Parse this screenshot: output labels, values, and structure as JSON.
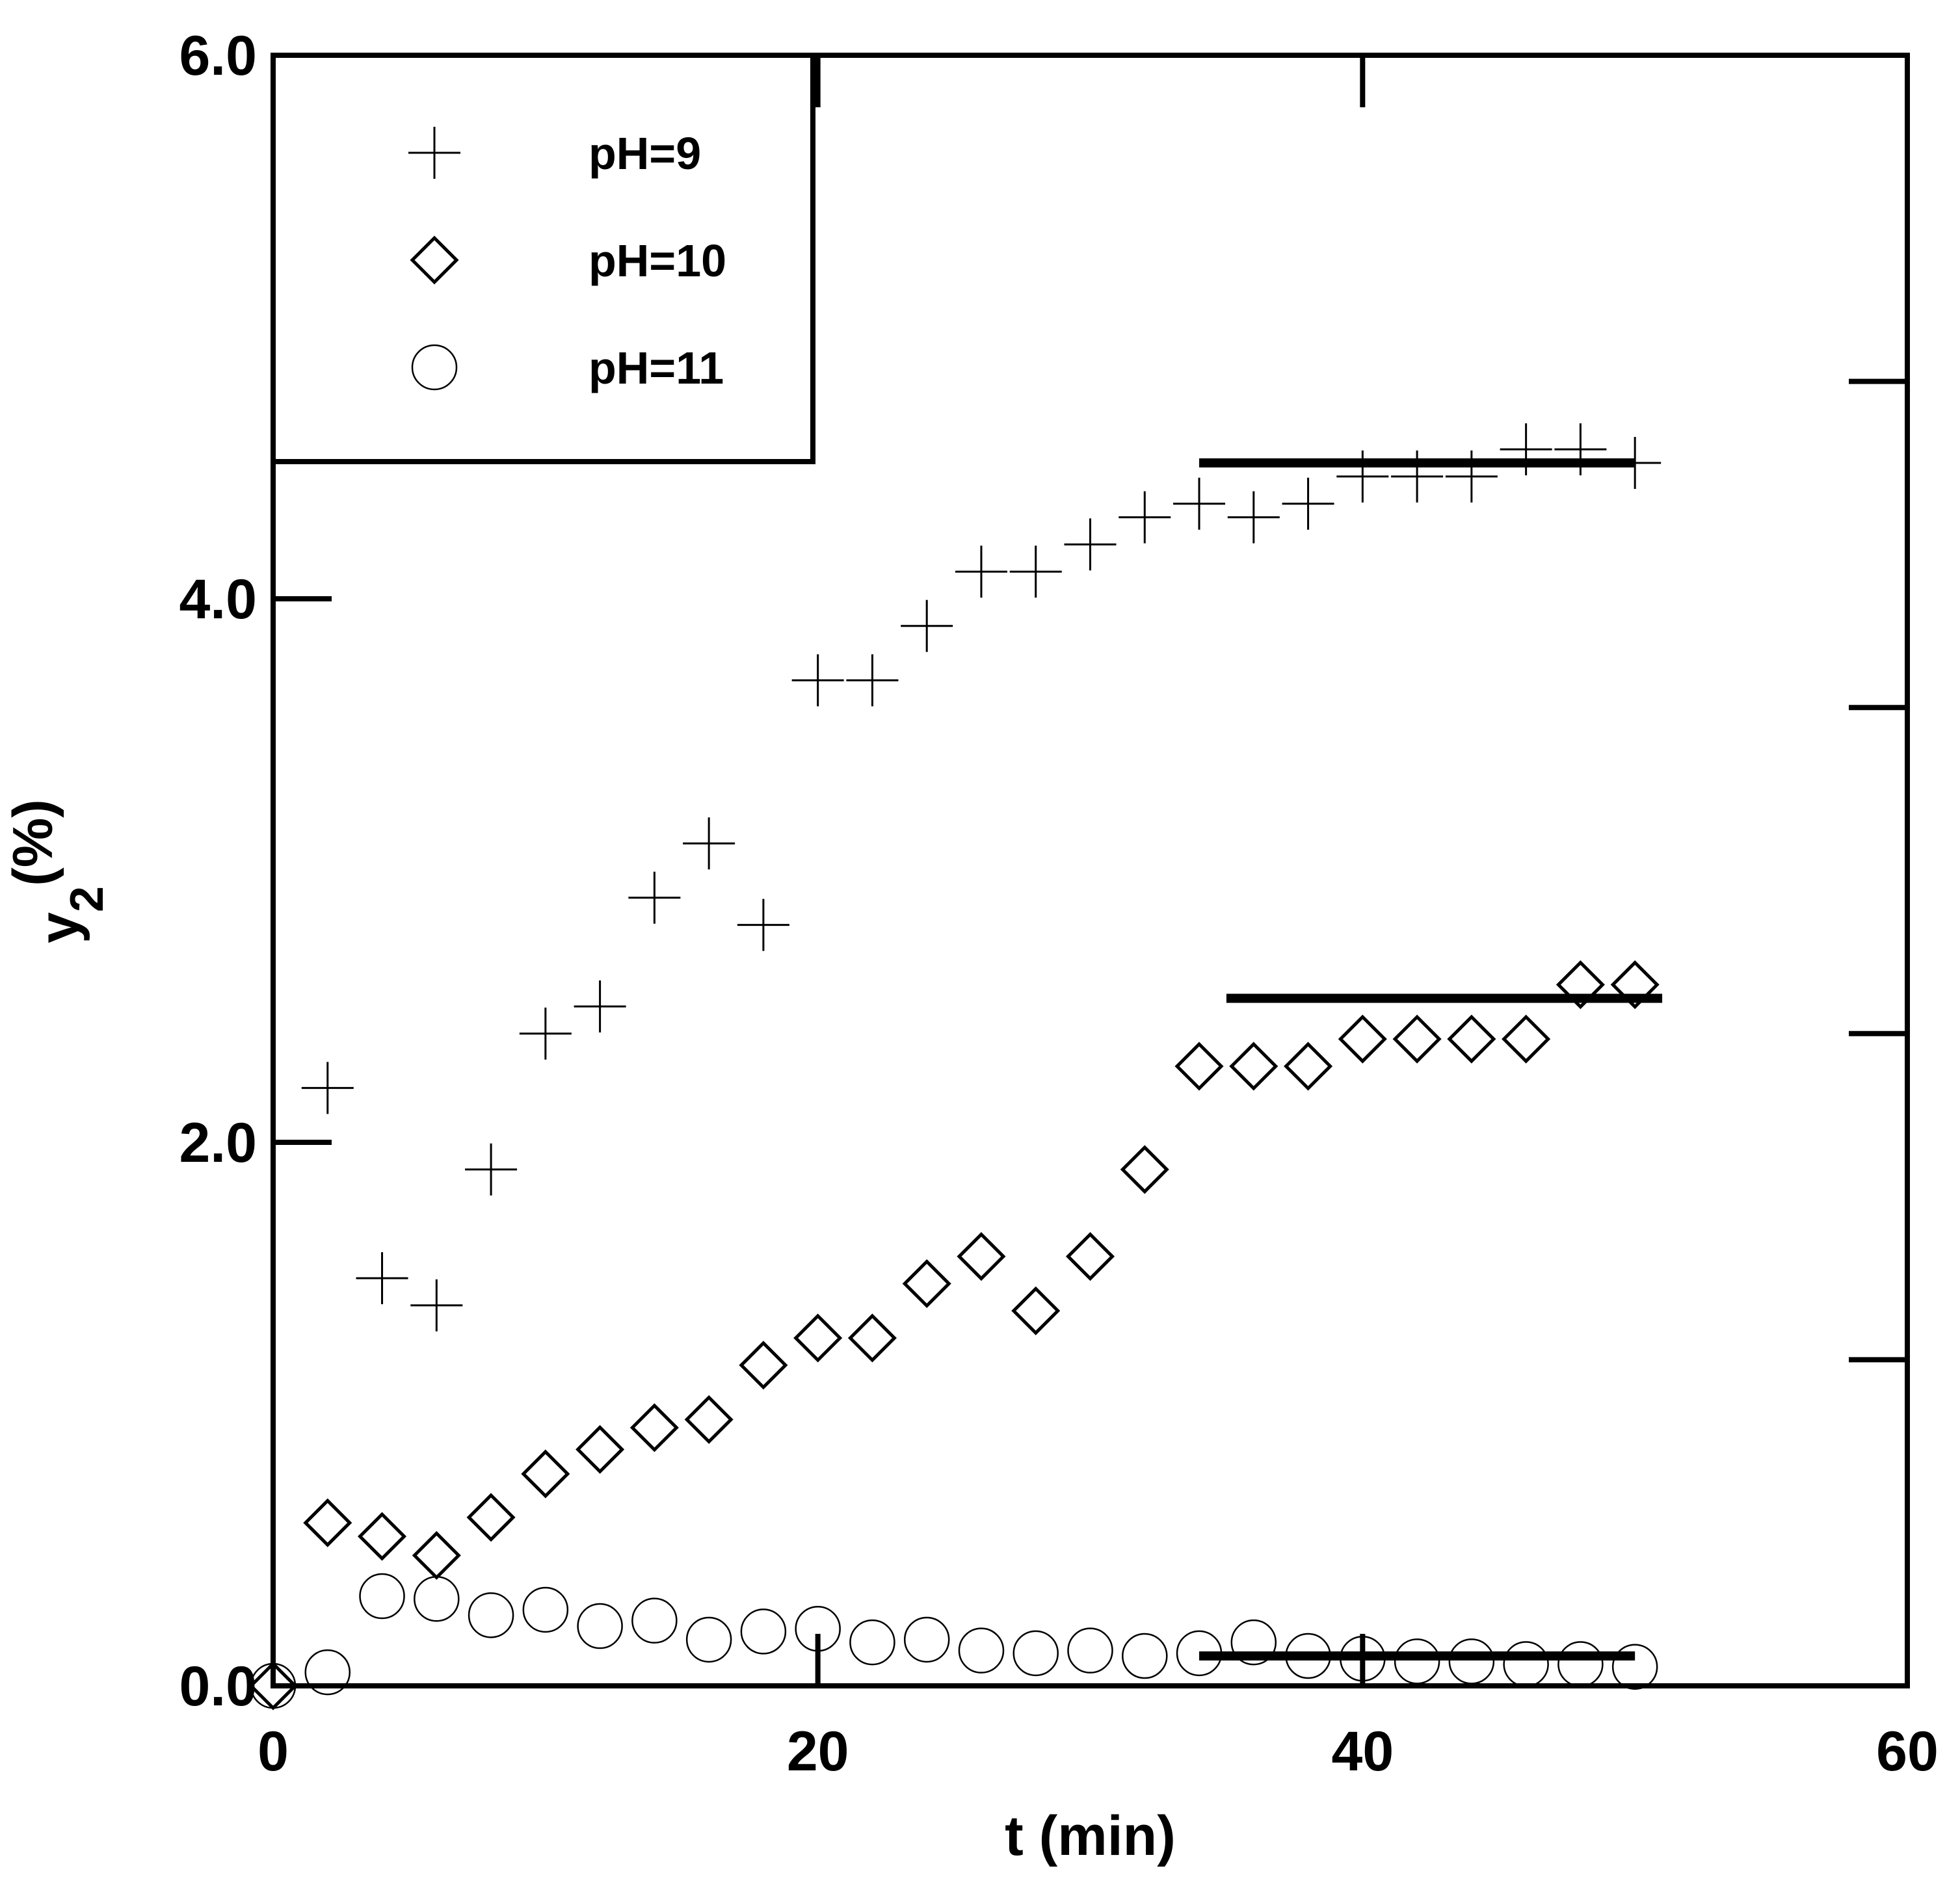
{
  "chart_data": {
    "type": "scatter",
    "title": "",
    "xlabel": "t (min)",
    "ylabel_main": "y",
    "ylabel_sub": "2",
    "ylabel_unit": "(%)",
    "xlim": [
      0,
      60
    ],
    "ylim": [
      0,
      6
    ],
    "x_ticks": [
      0,
      20,
      40,
      60
    ],
    "x_tick_labels": [
      "0",
      "20",
      "40",
      "60"
    ],
    "y_ticks": [
      0,
      2,
      4,
      6
    ],
    "y_tick_labels": [
      "0.0",
      "2.0",
      "4.0",
      "6.0"
    ],
    "right_minor_ticks": [
      1.2,
      2.4,
      3.6,
      4.8
    ],
    "grid": false,
    "legend_position": "top-left",
    "series": [
      {
        "name": "pH=9",
        "marker": "plus",
        "x": [
          2,
          4,
          6,
          8,
          10,
          12,
          14,
          16,
          18,
          20,
          22,
          24,
          26,
          28,
          30,
          32,
          34,
          36,
          38,
          40,
          42,
          44,
          46,
          48,
          50
        ],
        "y": [
          2.2,
          1.5,
          1.4,
          1.9,
          2.4,
          2.5,
          2.9,
          3.1,
          2.8,
          3.7,
          3.7,
          3.9,
          4.1,
          4.1,
          4.2,
          4.3,
          4.35,
          4.3,
          4.35,
          4.45,
          4.45,
          4.45,
          4.55,
          4.55,
          4.5
        ],
        "plateau": {
          "x_start": 34,
          "x_end": 50,
          "y": 4.5
        }
      },
      {
        "name": "pH=10",
        "marker": "diamond",
        "x": [
          0,
          2,
          4,
          6,
          8,
          10,
          12,
          14,
          16,
          18,
          20,
          22,
          24,
          26,
          28,
          30,
          32,
          34,
          36,
          38,
          40,
          42,
          44,
          46,
          48,
          50
        ],
        "y": [
          0,
          0.6,
          0.55,
          0.48,
          0.62,
          0.78,
          0.87,
          0.95,
          0.98,
          1.18,
          1.28,
          1.28,
          1.48,
          1.58,
          1.38,
          1.58,
          1.9,
          2.28,
          2.28,
          2.28,
          2.38,
          2.38,
          2.38,
          2.38,
          2.58,
          2.58
        ],
        "plateau": {
          "x_start": 35,
          "x_end": 51,
          "y": 2.53
        }
      },
      {
        "name": "pH=11",
        "marker": "circle",
        "x": [
          0,
          2,
          4,
          6,
          8,
          10,
          12,
          14,
          16,
          18,
          20,
          22,
          24,
          26,
          28,
          30,
          32,
          34,
          36,
          38,
          40,
          42,
          44,
          46,
          48,
          50
        ],
        "y": [
          0,
          0.05,
          0.33,
          0.32,
          0.26,
          0.28,
          0.22,
          0.24,
          0.17,
          0.2,
          0.21,
          0.16,
          0.17,
          0.13,
          0.12,
          0.13,
          0.11,
          0.12,
          0.16,
          0.11,
          0.1,
          0.09,
          0.09,
          0.08,
          0.08,
          0.07
        ],
        "plateau": {
          "x_start": 34,
          "x_end": 50,
          "y": 0.11
        }
      }
    ]
  }
}
